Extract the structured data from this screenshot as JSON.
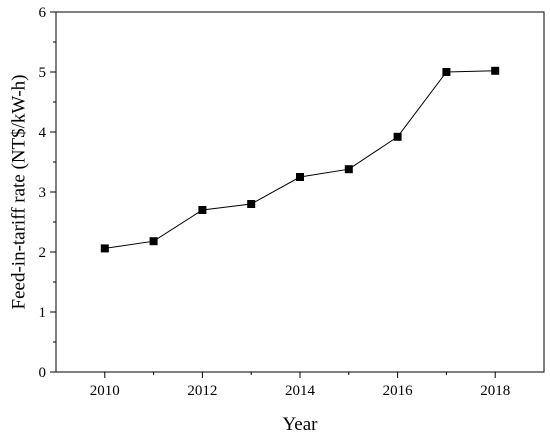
{
  "chart_data": {
    "type": "line",
    "title": "",
    "xlabel": "Year",
    "ylabel": "Feed-in-tariff rate (NT$/kW-h)",
    "xlim": [
      2009,
      2019
    ],
    "ylim": [
      0,
      6
    ],
    "xticks": [
      2010,
      2012,
      2014,
      2016,
      2018
    ],
    "yticks": [
      0,
      1,
      2,
      3,
      4,
      5,
      6
    ],
    "grid": false,
    "legend": "none",
    "marker": "square",
    "line_color": "#000000",
    "series": [
      {
        "x": [
          2010,
          2011,
          2012,
          2013,
          2014,
          2015,
          2016,
          2017,
          2018
        ],
        "values": [
          2.06,
          2.18,
          2.7,
          2.8,
          3.25,
          3.38,
          3.92,
          5.0,
          5.02
        ]
      }
    ]
  }
}
